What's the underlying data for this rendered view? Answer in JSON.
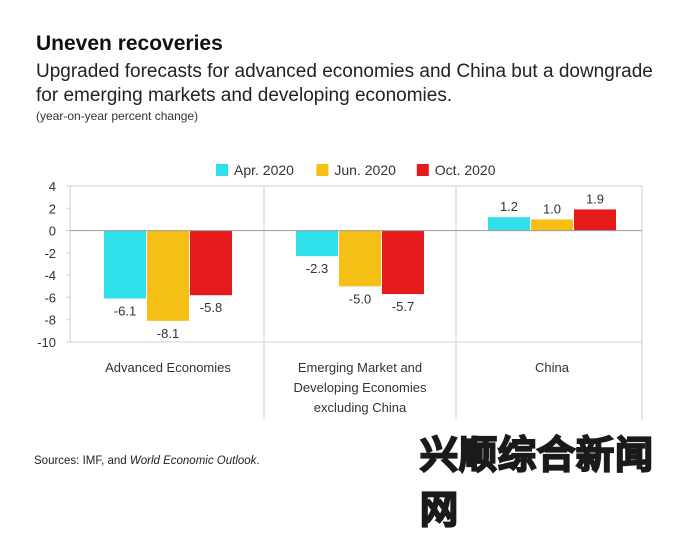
{
  "title": "Uneven recoveries",
  "subtitle": "Upgraded forecasts for advanced economies and China but a downgrade for emerging markets and developing economies.",
  "unit_note": "(year-on-year percent change)",
  "source_prefix": "Sources: IMF, and ",
  "source_italic": "World Economic Outlook",
  "source_suffix": ".",
  "watermark": "兴顺综合新闻网",
  "chart_data": {
    "type": "bar",
    "categories": [
      [
        "Advanced Economies"
      ],
      [
        "Emerging Market and",
        "Developing Economies",
        "excluding China"
      ],
      [
        "China"
      ]
    ],
    "series": [
      {
        "name": "Apr. 2020",
        "color": "#2fe0ea",
        "values": [
          -6.1,
          -2.3,
          1.2
        ]
      },
      {
        "name": "Jun. 2020",
        "color": "#f5bf15",
        "values": [
          -8.1,
          -5.0,
          1.0
        ]
      },
      {
        "name": "Oct. 2020",
        "color": "#e51b1b",
        "values": [
          -5.8,
          -5.7,
          1.9
        ]
      }
    ],
    "ylim": [
      -10,
      4
    ],
    "yticks": [
      4,
      2,
      0,
      -2,
      -4,
      -6,
      -8,
      -10
    ],
    "value_labels": [
      [
        "-6.1",
        "-2.3",
        "1.2"
      ],
      [
        "-8.1",
        "-5.0",
        "1.0"
      ],
      [
        "-5.8",
        "-5.7",
        "1.9"
      ]
    ],
    "legend_position": "top-center"
  }
}
